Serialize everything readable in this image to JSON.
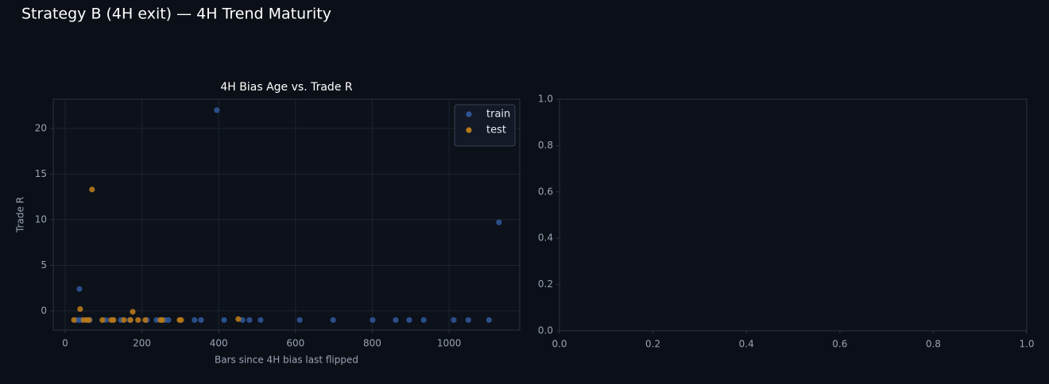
{
  "title": "Strategy B (4H exit) — 4H Trend Maturity",
  "chart_data": [
    {
      "type": "scatter",
      "title": "4H Bias Age vs. Trade R",
      "x_label": "Bars since 4H bias last flipped",
      "y_label": "Trade R",
      "xlim": [
        -31,
        1184
      ],
      "ylim": [
        -2.1,
        23.2
      ],
      "xticks": [
        0,
        200,
        400,
        600,
        800,
        1000
      ],
      "yticks": [
        0,
        5,
        10,
        15,
        20
      ],
      "grid": true,
      "legend": "upper right",
      "series": [
        {
          "name": "train",
          "color": "#2f5596",
          "x": [
            37,
            395,
            1130,
            31,
            37,
            43,
            64,
            106,
            145,
            168,
            213,
            238,
            261,
            269,
            337,
            354,
            414,
            462,
            480,
            509,
            611,
            698,
            801,
            861,
            896,
            934,
            1012,
            1050,
            1104
          ],
          "values": [
            2.4,
            22.0,
            9.7,
            -1,
            -1,
            -1,
            -1,
            -1,
            -1,
            -1,
            -1,
            -1,
            -1,
            -1,
            -1,
            -1,
            -1,
            -1,
            -1,
            -1,
            -1,
            -1,
            -1,
            -1,
            -1,
            -1,
            -1,
            -1,
            -1
          ]
        },
        {
          "name": "test",
          "color": "#b8791a",
          "x": [
            70,
            39,
            176,
            451,
            23,
            48,
            56,
            62,
            97,
            120,
            126,
            153,
            170,
            190,
            209,
            248,
            253,
            298,
            302
          ],
          "values": [
            13.3,
            0.2,
            -0.1,
            -0.9,
            -1,
            -1,
            -1,
            -1,
            -1,
            -1,
            -1,
            -1,
            -1,
            -1,
            -1,
            -1,
            -1,
            -1,
            -1
          ]
        }
      ]
    },
    {
      "type": "scatter",
      "xlim": [
        0,
        1
      ],
      "ylim": [
        0,
        1
      ],
      "grid": false,
      "xticks": [
        {
          "value": 0,
          "label": "0.0"
        },
        {
          "value": 0.2,
          "label": "0.2"
        },
        {
          "value": 0.4,
          "label": "0.4"
        },
        {
          "value": 0.6,
          "label": "0.6"
        },
        {
          "value": 0.8,
          "label": "0.8"
        },
        {
          "value": 1,
          "label": "1.0"
        }
      ],
      "yticks": [
        {
          "value": 0,
          "label": "0.0"
        },
        {
          "value": 0.2,
          "label": "0.2"
        },
        {
          "value": 0.4,
          "label": "0.4"
        },
        {
          "value": 0.6,
          "label": "0.6"
        },
        {
          "value": 0.8,
          "label": "0.8"
        },
        {
          "value": 1,
          "label": "1.0"
        }
      ],
      "series": []
    }
  ]
}
